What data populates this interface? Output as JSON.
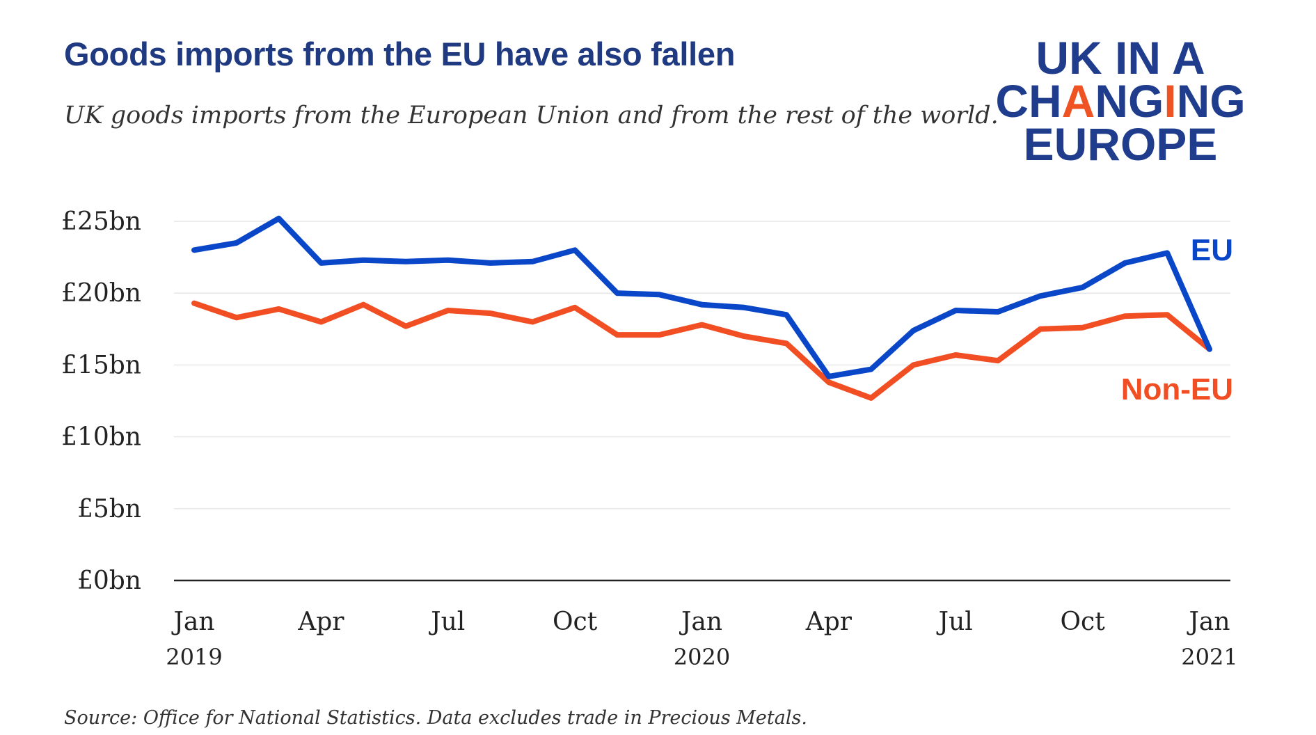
{
  "header": {
    "title": "Goods imports from the EU have also fallen",
    "subtitle": "UK goods imports from the European Union and from the rest of the world."
  },
  "logo": {
    "line1": "UK IN A",
    "line2_a": "CH",
    "line2_b": "A",
    "line2_c": "N",
    "line2_d": "G",
    "line2_e": "I",
    "line2_f": "NG",
    "line3": "EUROPE",
    "colors": {
      "primary": "#1f3d8c",
      "accent": "#ef5223"
    }
  },
  "footer": {
    "source": "Source: Office for National Statistics. Data excludes trade in Precious Metals."
  },
  "chart_data": {
    "type": "line",
    "x": [
      "2019-01",
      "2019-02",
      "2019-03",
      "2019-04",
      "2019-05",
      "2019-06",
      "2019-07",
      "2019-08",
      "2019-09",
      "2019-10",
      "2019-11",
      "2019-12",
      "2020-01",
      "2020-02",
      "2020-03",
      "2020-04",
      "2020-05",
      "2020-06",
      "2020-07",
      "2020-08",
      "2020-09",
      "2020-10",
      "2020-11",
      "2020-12",
      "2021-01"
    ],
    "series": [
      {
        "name": "EU",
        "color": "#0a47c8",
        "values": [
          23.0,
          23.5,
          25.2,
          22.1,
          22.3,
          22.2,
          22.3,
          22.1,
          22.2,
          23.0,
          20.0,
          19.9,
          19.2,
          19.0,
          18.5,
          14.2,
          14.7,
          17.4,
          18.8,
          18.7,
          19.8,
          20.4,
          22.1,
          22.8,
          16.1
        ]
      },
      {
        "name": "Non-EU",
        "color": "#f24e23",
        "values": [
          19.3,
          18.3,
          18.9,
          18.0,
          19.2,
          17.7,
          18.8,
          18.6,
          18.0,
          19.0,
          17.1,
          17.1,
          17.8,
          17.0,
          16.5,
          13.8,
          12.7,
          15.0,
          15.7,
          15.3,
          17.5,
          17.6,
          18.4,
          18.5,
          16.1
        ]
      }
    ],
    "y_ticks": [
      "£0bn",
      "£5bn",
      "£10bn",
      "£15bn",
      "£20bn",
      "£25bn"
    ],
    "y_tick_values": [
      0,
      5,
      10,
      15,
      20,
      25
    ],
    "x_ticks": [
      {
        "month": "Jan",
        "year": "2019",
        "index": 0
      },
      {
        "month": "Apr",
        "year": "",
        "index": 3
      },
      {
        "month": "Jul",
        "year": "",
        "index": 6
      },
      {
        "month": "Oct",
        "year": "",
        "index": 9
      },
      {
        "month": "Jan",
        "year": "2020",
        "index": 12
      },
      {
        "month": "Apr",
        "year": "",
        "index": 15
      },
      {
        "month": "Jul",
        "year": "",
        "index": 18
      },
      {
        "month": "Oct",
        "year": "",
        "index": 21
      },
      {
        "month": "Jan",
        "year": "2021",
        "index": 24
      }
    ],
    "ylim": [
      0,
      25
    ],
    "grid": true,
    "legend": "direct labels at line ends"
  }
}
